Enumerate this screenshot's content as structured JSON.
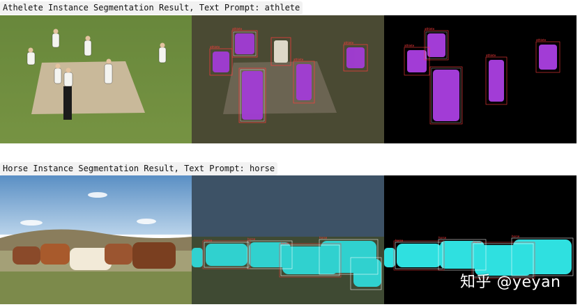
{
  "section1": {
    "caption": "Athelete Instance Segmentation Result, Text Prompt: athlete",
    "label": "athlete"
  },
  "section2": {
    "caption": "Horse Instance Segmentation Result, Text Prompt: horse",
    "label": "horse"
  },
  "watermark": "知乎 @yeyan",
  "colors": {
    "athlete_mask": "#a23cd6",
    "horse_mask": "#2fe0e0",
    "box_red": "#ff3b3b",
    "box_white": "#ffffff"
  }
}
